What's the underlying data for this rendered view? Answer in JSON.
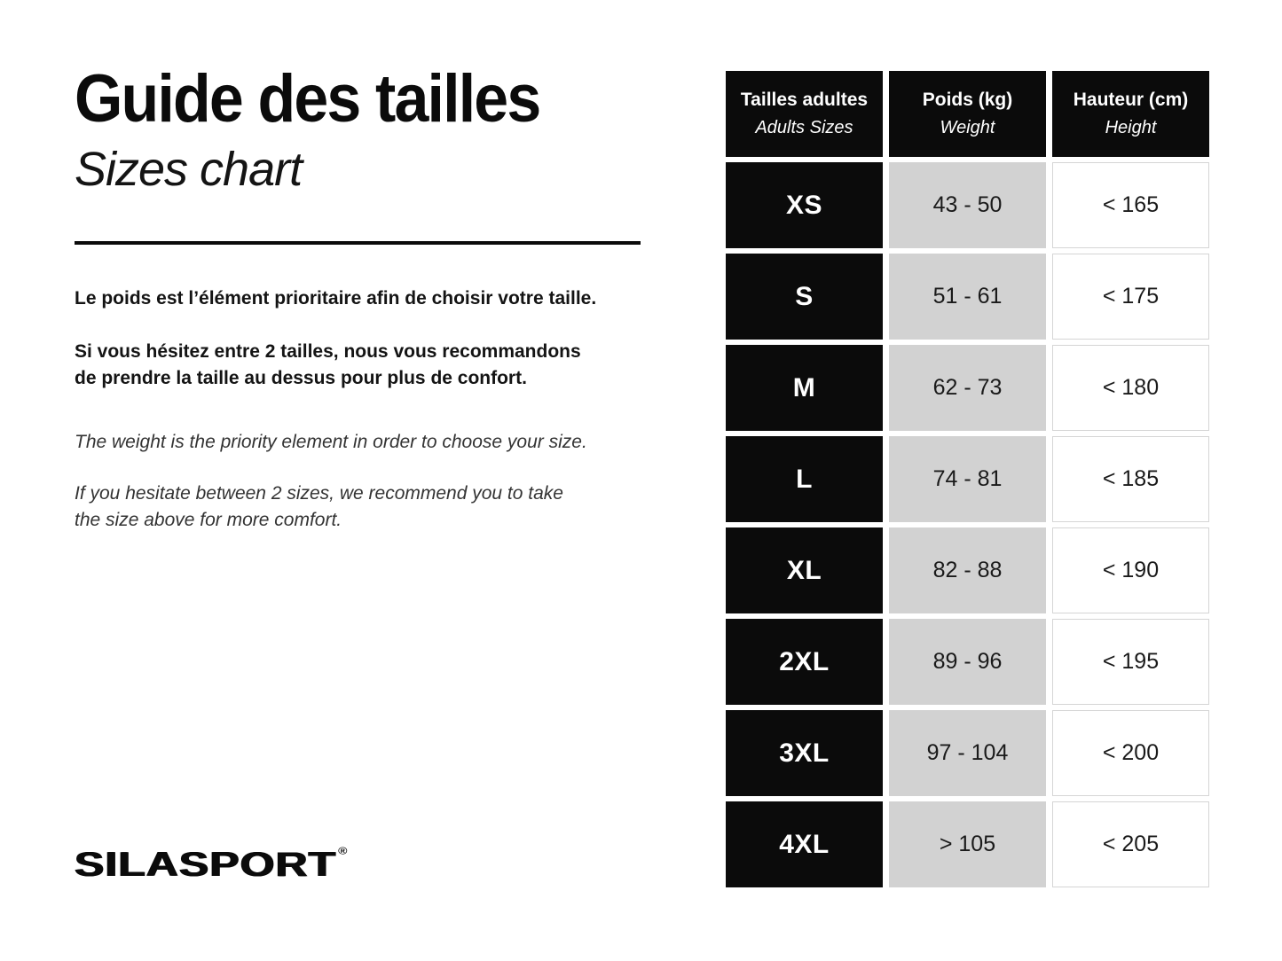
{
  "left": {
    "title": "Guide des tailles",
    "subtitle": "Sizes chart",
    "fr_paragraphs": [
      "Le poids est l’élément prioritaire afin de choisir votre taille.",
      "Si vous hésitez entre 2 tailles, nous vous recommandons\nde prendre la taille au dessus pour plus de confort."
    ],
    "en_paragraphs": [
      "The weight is the priority element in order to choose your size.",
      "If you hesitate between 2 sizes, we recommend you to take\nthe size above for more comfort."
    ],
    "logo_text": "SILASPORT",
    "logo_reg": "®"
  },
  "table": {
    "headers": [
      {
        "fr": "Tailles adultes",
        "en": "Adults Sizes"
      },
      {
        "fr": "Poids (kg)",
        "en": "Weight"
      },
      {
        "fr": "Hauteur (cm)",
        "en": "Height"
      }
    ],
    "rows": [
      {
        "size": "XS",
        "weight": "43 - 50",
        "height": "< 165"
      },
      {
        "size": "S",
        "weight": "51 - 61",
        "height": "< 175"
      },
      {
        "size": "M",
        "weight": "62 - 73",
        "height": "< 180"
      },
      {
        "size": "L",
        "weight": "74 - 81",
        "height": "< 185"
      },
      {
        "size": "XL",
        "weight": "82 - 88",
        "height": "< 190"
      },
      {
        "size": "2XL",
        "weight": "89 - 96",
        "height": "< 195"
      },
      {
        "size": "3XL",
        "weight": "97 - 104",
        "height": "< 200"
      },
      {
        "size": "4XL",
        "weight": "> 105",
        "height": "< 205"
      }
    ]
  },
  "colors": {
    "black": "#0b0b0b",
    "cell_gray": "#d2d2d2",
    "cell_border": "#d5d5d5",
    "background": "#ffffff"
  },
  "chart_data": {
    "type": "table",
    "title": "Guide des tailles / Sizes chart",
    "columns": [
      "Tailles adultes / Adults Sizes",
      "Poids (kg) / Weight",
      "Hauteur (cm) / Height"
    ],
    "rows": [
      [
        "XS",
        "43 - 50",
        "< 165"
      ],
      [
        "S",
        "51 - 61",
        "< 175"
      ],
      [
        "M",
        "62 - 73",
        "< 180"
      ],
      [
        "L",
        "74 - 81",
        "< 185"
      ],
      [
        "XL",
        "82 - 88",
        "< 190"
      ],
      [
        "2XL",
        "89 - 96",
        "< 195"
      ],
      [
        "3XL",
        "97 - 104",
        "< 200"
      ],
      [
        "4XL",
        "> 105",
        "< 205"
      ]
    ]
  }
}
